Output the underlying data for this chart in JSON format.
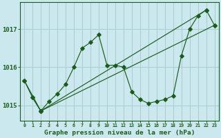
{
  "title": "Graphe pression niveau de la mer (hPa)",
  "bg_color": "#cce8ef",
  "grid_color": "#aacccc",
  "line_color": "#1a5c1a",
  "ylim": [
    1014.6,
    1017.7
  ],
  "yticks": [
    1015,
    1016,
    1017
  ],
  "xlim": [
    -0.5,
    23.5
  ],
  "xticks": [
    0,
    1,
    2,
    3,
    4,
    5,
    6,
    7,
    8,
    9,
    10,
    11,
    12,
    13,
    14,
    15,
    16,
    17,
    18,
    19,
    20,
    21,
    22,
    23
  ],
  "x_labels": [
    "0",
    "1",
    "2",
    "3",
    "4",
    "5",
    "6",
    "7",
    "8",
    "9",
    "10",
    "11",
    "12",
    "13",
    "14",
    "15",
    "16",
    "17",
    "18",
    "19",
    "20",
    "21",
    "22",
    "23"
  ],
  "jagged_y": [
    1015.65,
    1015.2,
    1014.85,
    1015.1,
    1015.3,
    1015.55,
    1016.0,
    1016.5,
    1016.65,
    1016.85,
    1016.05,
    1016.05,
    1016.0,
    1015.35,
    1015.15,
    1015.05,
    1015.1,
    1015.15,
    1015.25,
    1016.3,
    1017.0,
    1017.35,
    1017.5,
    1017.1
  ],
  "trend1_x": [
    1,
    2,
    22
  ],
  "trend1_y": [
    1015.2,
    1014.85,
    1017.5
  ],
  "trend2_x": [
    0,
    2,
    23
  ],
  "trend2_y": [
    1015.65,
    1014.85,
    1017.1
  ]
}
